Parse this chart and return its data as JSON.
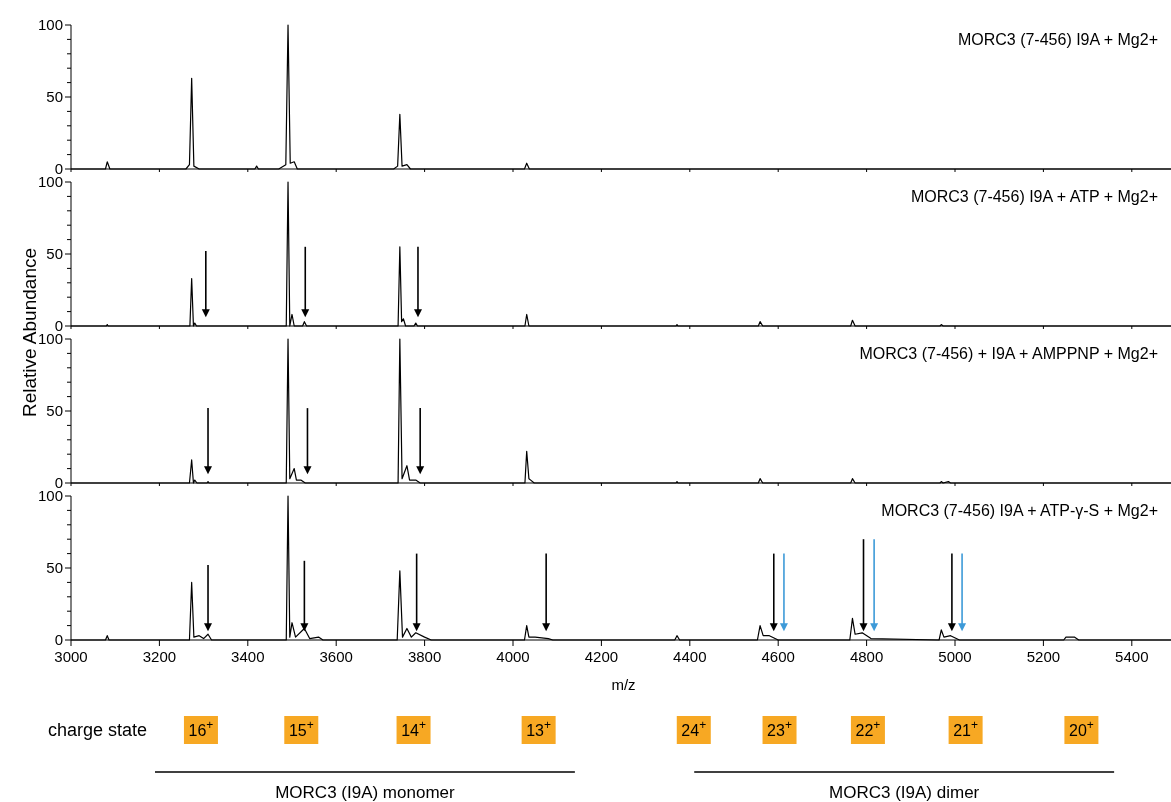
{
  "chart_data": [
    {
      "type": "line",
      "title": "MORC3 (7-456) I9A + Mg2+",
      "ylabel": "Relative Abundance",
      "xlim": [
        3000,
        5500
      ],
      "xticks": [
        3000,
        3200,
        3400,
        3600,
        3800,
        4000,
        4200,
        4400,
        4600,
        4800,
        5000,
        5200,
        5400
      ],
      "ylim": [
        0,
        100
      ],
      "yticks": [
        0,
        {
          "value": 10,
          "label": null
        },
        {
          "value": 20,
          "label": null
        },
        {
          "value": 30,
          "label": null
        },
        {
          "value": 40,
          "label": null
        },
        50,
        {
          "value": 60,
          "label": null
        },
        {
          "value": 70,
          "label": null
        },
        {
          "value": 80,
          "label": null
        },
        {
          "value": 90,
          "label": null
        },
        100
      ],
      "tick_labels": "y",
      "grid": false,
      "x": [
        3000,
        3078,
        3082,
        3088,
        3260,
        3268,
        3273,
        3278,
        3290,
        3416,
        3420,
        3424,
        3470,
        3486,
        3491,
        3496,
        3505,
        3512,
        3730,
        3739,
        3744,
        3749,
        3760,
        3768,
        4026,
        4031,
        4037,
        5500
      ],
      "series": [
        {
          "color": "#000000",
          "values": [
            0,
            0,
            5,
            0,
            0,
            3,
            63,
            2,
            0,
            0,
            2,
            0,
            0,
            3,
            100,
            4,
            5,
            0,
            0,
            2,
            38,
            2,
            3,
            0,
            0,
            4,
            0,
            0
          ]
        }
      ]
    },
    {
      "type": "line",
      "title": "MORC3 (7-456) I9A + ATP + Mg2+",
      "xlim": [
        3000,
        5500
      ],
      "xticks": [
        3000,
        3200,
        3400,
        3600,
        3800,
        4000,
        4200,
        4400,
        4600,
        4800,
        5000,
        5200,
        5400
      ],
      "ylim": [
        0,
        100
      ],
      "yticks": [
        0,
        {
          "value": 10,
          "label": null
        },
        {
          "value": 20,
          "label": null
        },
        {
          "value": 30,
          "label": null
        },
        {
          "value": 40,
          "label": null
        },
        50,
        {
          "value": 60,
          "label": null
        },
        {
          "value": 70,
          "label": null
        },
        {
          "value": 80,
          "label": null
        },
        {
          "value": 90,
          "label": null
        },
        100
      ],
      "tick_labels": "y",
      "grid": false,
      "x": [
        3000,
        3080,
        3082,
        3084,
        3269,
        3273,
        3277,
        3280,
        3284,
        3487,
        3491,
        3495,
        3500,
        3505,
        3524,
        3528,
        3533,
        3740,
        3744,
        3748,
        3752,
        3757,
        3776,
        3780,
        3784,
        4027,
        4031,
        4036,
        4369,
        4371,
        4373,
        4555,
        4559,
        4565,
        4764,
        4768,
        4774,
        4966,
        4969,
        4973,
        5500
      ],
      "series": [
        {
          "color": "#000000",
          "values": [
            0,
            0,
            1,
            0,
            0,
            33,
            0,
            2,
            0,
            0,
            100,
            0,
            8,
            0,
            0,
            3,
            0,
            0,
            55,
            3,
            5,
            0,
            0,
            2,
            0,
            0,
            8,
            0,
            0,
            1,
            0,
            0,
            3,
            0,
            0,
            4,
            0,
            0,
            1,
            0,
            0
          ]
        }
      ]
    },
    {
      "type": "line",
      "title": "MORC3 (7-456) + I9A + AMPPNP + Mg2+",
      "xlim": [
        3000,
        5500
      ],
      "xticks": [
        3000,
        3200,
        3400,
        3600,
        3800,
        4000,
        4200,
        4400,
        4600,
        4800,
        5000,
        5200,
        5400
      ],
      "ylim": [
        0,
        100
      ],
      "yticks": [
        0,
        {
          "value": 10,
          "label": null
        },
        {
          "value": 20,
          "label": null
        },
        {
          "value": 30,
          "label": null
        },
        {
          "value": 40,
          "label": null
        },
        50,
        {
          "value": 60,
          "label": null
        },
        {
          "value": 70,
          "label": null
        },
        {
          "value": 80,
          "label": null
        },
        {
          "value": 90,
          "label": null
        },
        100
      ],
      "tick_labels": "y",
      "grid": false,
      "x": [
        3000,
        3268,
        3273,
        3277,
        3280,
        3285,
        3308,
        3310,
        3312,
        3487,
        3491,
        3495,
        3505,
        3510,
        3520,
        3530,
        3740,
        3744,
        3749,
        3760,
        3766,
        3780,
        3790,
        4027,
        4031,
        4036,
        4040,
        4048,
        4369,
        4371,
        4373,
        4555,
        4559,
        4565,
        4764,
        4768,
        4774,
        4966,
        4969,
        4973,
        4985,
        4990,
        5500
      ],
      "series": [
        {
          "color": "#000000",
          "values": [
            0,
            0,
            16,
            0,
            2,
            0,
            0,
            1,
            0,
            0,
            100,
            3,
            10,
            2,
            2,
            0,
            0,
            100,
            3,
            12,
            2,
            2,
            0,
            0,
            22,
            3,
            2,
            0,
            0,
            1,
            0,
            0,
            3,
            0,
            0,
            3,
            0,
            0,
            1,
            0,
            1,
            0,
            0
          ]
        }
      ]
    },
    {
      "type": "line",
      "title": "MORC3 (7-456) I9A + ATP-γ-S + Mg2+",
      "xlabel": "m/z",
      "xlim": [
        3000,
        5500
      ],
      "xticks": [
        3000,
        3200,
        3400,
        3600,
        3800,
        4000,
        4200,
        4400,
        4600,
        4800,
        5000,
        5200,
        5400
      ],
      "ylim": [
        0,
        100
      ],
      "yticks": [
        0,
        {
          "value": 10,
          "label": null
        },
        {
          "value": 20,
          "label": null
        },
        {
          "value": 30,
          "label": null
        },
        {
          "value": 40,
          "label": null
        },
        50,
        {
          "value": 60,
          "label": null
        },
        {
          "value": 70,
          "label": null
        },
        {
          "value": 80,
          "label": null
        },
        {
          "value": 90,
          "label": null
        },
        100
      ],
      "grid": false,
      "x": [
        3000,
        3078,
        3082,
        3086,
        3268,
        3273,
        3278,
        3290,
        3300,
        3310,
        3318,
        3487,
        3491,
        3495,
        3500,
        3508,
        3528,
        3540,
        3560,
        3570,
        3738,
        3744,
        3750,
        3760,
        3770,
        3780,
        3800,
        3815,
        4026,
        4031,
        4036,
        4050,
        4080,
        4090,
        4366,
        4371,
        4377,
        4553,
        4559,
        4566,
        4580,
        4600,
        4762,
        4768,
        4774,
        4790,
        4810,
        4964,
        4969,
        4975,
        4990,
        5010,
        5246,
        5251,
        5270,
        5280,
        5500
      ],
      "series": [
        {
          "color": "#000000",
          "values": [
            0,
            0,
            3,
            0,
            0,
            40,
            2,
            3,
            1,
            4,
            0,
            0,
            100,
            2,
            12,
            2,
            8,
            1,
            2,
            0,
            0,
            48,
            2,
            8,
            2,
            5,
            2,
            0,
            0,
            10,
            2,
            2,
            1,
            0,
            0,
            3,
            0,
            0,
            10,
            3,
            3,
            0,
            0,
            15,
            4,
            5,
            1,
            0,
            7,
            2,
            3,
            0,
            0,
            2,
            2,
            0,
            0
          ]
        }
      ],
      "annotations": [
        "charge state",
        "16$^{+}$",
        "15$^{+}$",
        "14$^{+}$",
        "13$^{+}$",
        "24$^{+}$",
        "23$^{+}$",
        "22$^{+}$",
        "21$^{+}$",
        "20$^{+}$",
        "MORC3 (I9A) monomer",
        "MORC3 (I9A) dimer"
      ]
    }
  ]
}
